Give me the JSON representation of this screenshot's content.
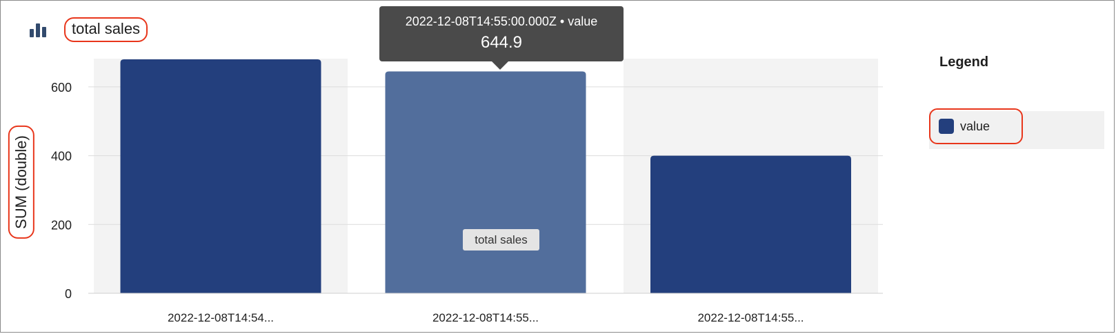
{
  "panel": {
    "title": "total sales",
    "icon": "bar-chart-icon"
  },
  "tooltip": {
    "header": "2022-12-08T14:55:00.000Z • value",
    "value": "644.9"
  },
  "hover_label": "total sales",
  "legend": {
    "title": "Legend",
    "items": [
      {
        "label": "value",
        "color": "#233f7d"
      }
    ]
  },
  "chart_data": {
    "type": "bar",
    "categories": [
      "2022-12-08T14:54...",
      "2022-12-08T14:55...",
      "2022-12-08T14:55..."
    ],
    "series": [
      {
        "name": "value",
        "values": [
          680,
          644.9,
          400
        ],
        "color": "#233f7d"
      }
    ],
    "highlighted_index": 1,
    "highlight_color": "#526e9c",
    "ylabel": "SUM (double)",
    "ylim": [
      0,
      700
    ],
    "yticks": [
      0,
      200,
      400,
      600
    ],
    "grid": true,
    "legend_position": "right"
  }
}
